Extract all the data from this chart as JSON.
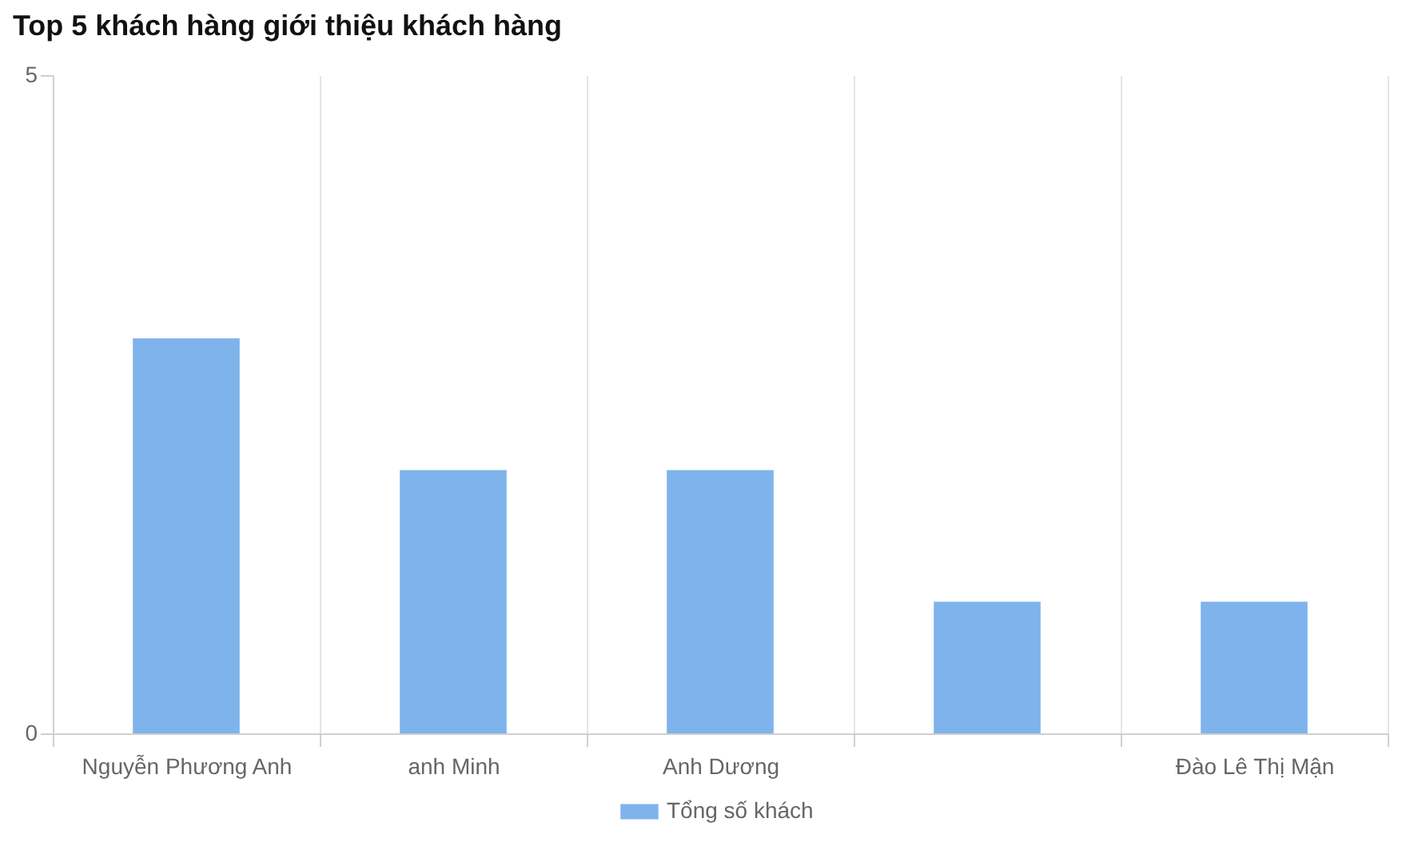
{
  "chart_data": {
    "type": "bar",
    "title": "Top 5 khách hàng giới thiệu khách hàng",
    "categories": [
      "Nguyễn Phương Anh",
      "anh Minh",
      "Anh Dương",
      null,
      "Đào Lê Thị Mận"
    ],
    "series": [
      {
        "name": "Tổng số khách",
        "color": "#7eb3ec",
        "values": [
          3,
          2,
          2,
          1,
          1
        ]
      }
    ],
    "ylim": [
      0,
      5
    ],
    "yticks": [
      0,
      5
    ],
    "grid": "x",
    "legend": "bottom"
  }
}
